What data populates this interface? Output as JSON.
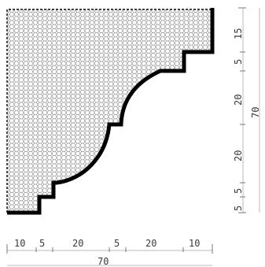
{
  "bottom_dims": {
    "segments": [
      "10",
      "5",
      "20",
      "5",
      "20",
      "10"
    ],
    "total": "70"
  },
  "right_dims": {
    "segments": [
      "15",
      "5",
      "20",
      "20",
      "5",
      "5"
    ],
    "total": "70"
  },
  "colors": {
    "profile_outline": "#000000",
    "hatch": "#8a8a8a",
    "dimension_line": "#bbbbbb",
    "text": "#3a3a3a"
  }
}
